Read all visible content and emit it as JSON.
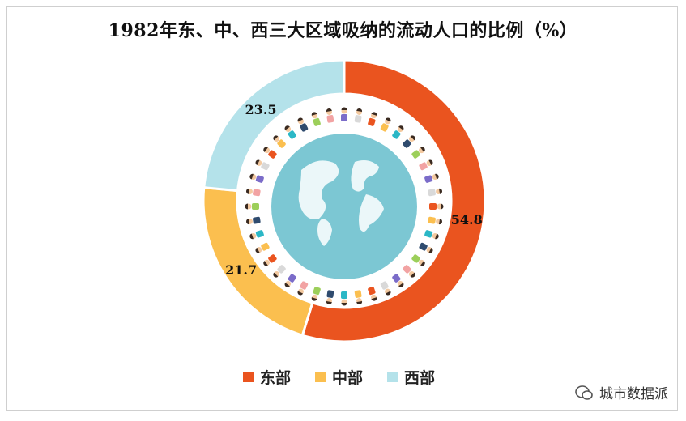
{
  "chart_data": {
    "type": "pie",
    "title": "1982年东、中、西三大区域吸纳的流动人口的比例（%）",
    "categories": [
      "东部",
      "中部",
      "西部"
    ],
    "values": [
      54.8,
      21.7,
      23.5
    ],
    "colors": [
      "#ea541f",
      "#fbbf4f",
      "#b4e2ea"
    ],
    "labels": [
      "54.8",
      "21.7",
      "23.5"
    ],
    "legend_position": "bottom"
  },
  "watermark": {
    "icon": "wechat-icon",
    "text": "城市数据派"
  }
}
